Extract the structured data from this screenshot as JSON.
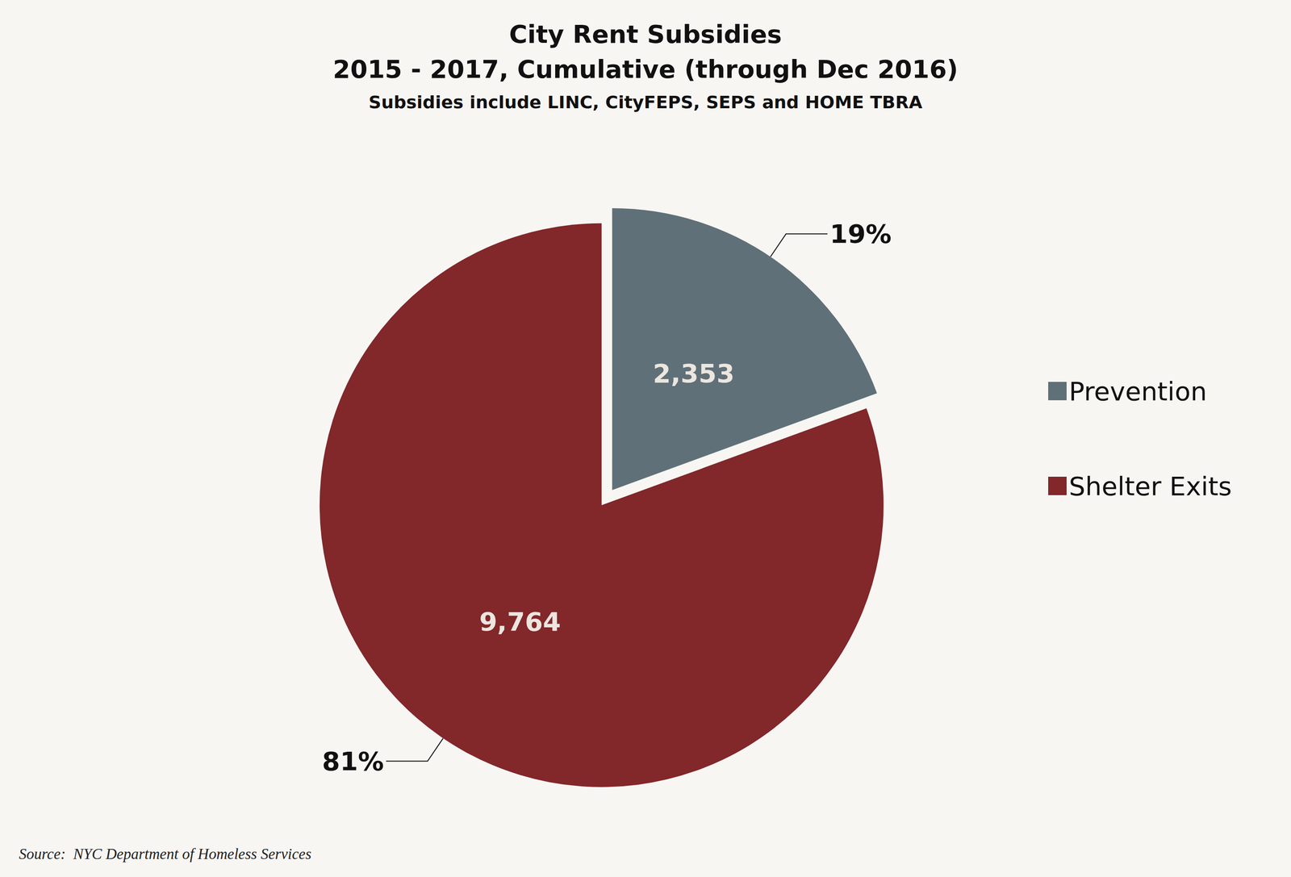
{
  "chart_data": {
    "type": "pie",
    "title": "City Rent Subsidies",
    "subtitle": "2015 - 2017, Cumulative (through Dec 2016)",
    "note": "Subsidies include LINC, CityFEPS, SEPS and HOME TBRA",
    "source": "Source:  NYC Department of Homeless Services",
    "categories": [
      "Prevention",
      "Shelter Exits"
    ],
    "values": [
      2353,
      9764
    ],
    "value_labels": [
      "2,353",
      "9,764"
    ],
    "percentages": [
      19,
      81
    ],
    "percentage_labels": [
      "19%",
      "81%"
    ],
    "colors": [
      "#5f7078",
      "#82272a"
    ],
    "legend": "right",
    "data_labels": true
  }
}
